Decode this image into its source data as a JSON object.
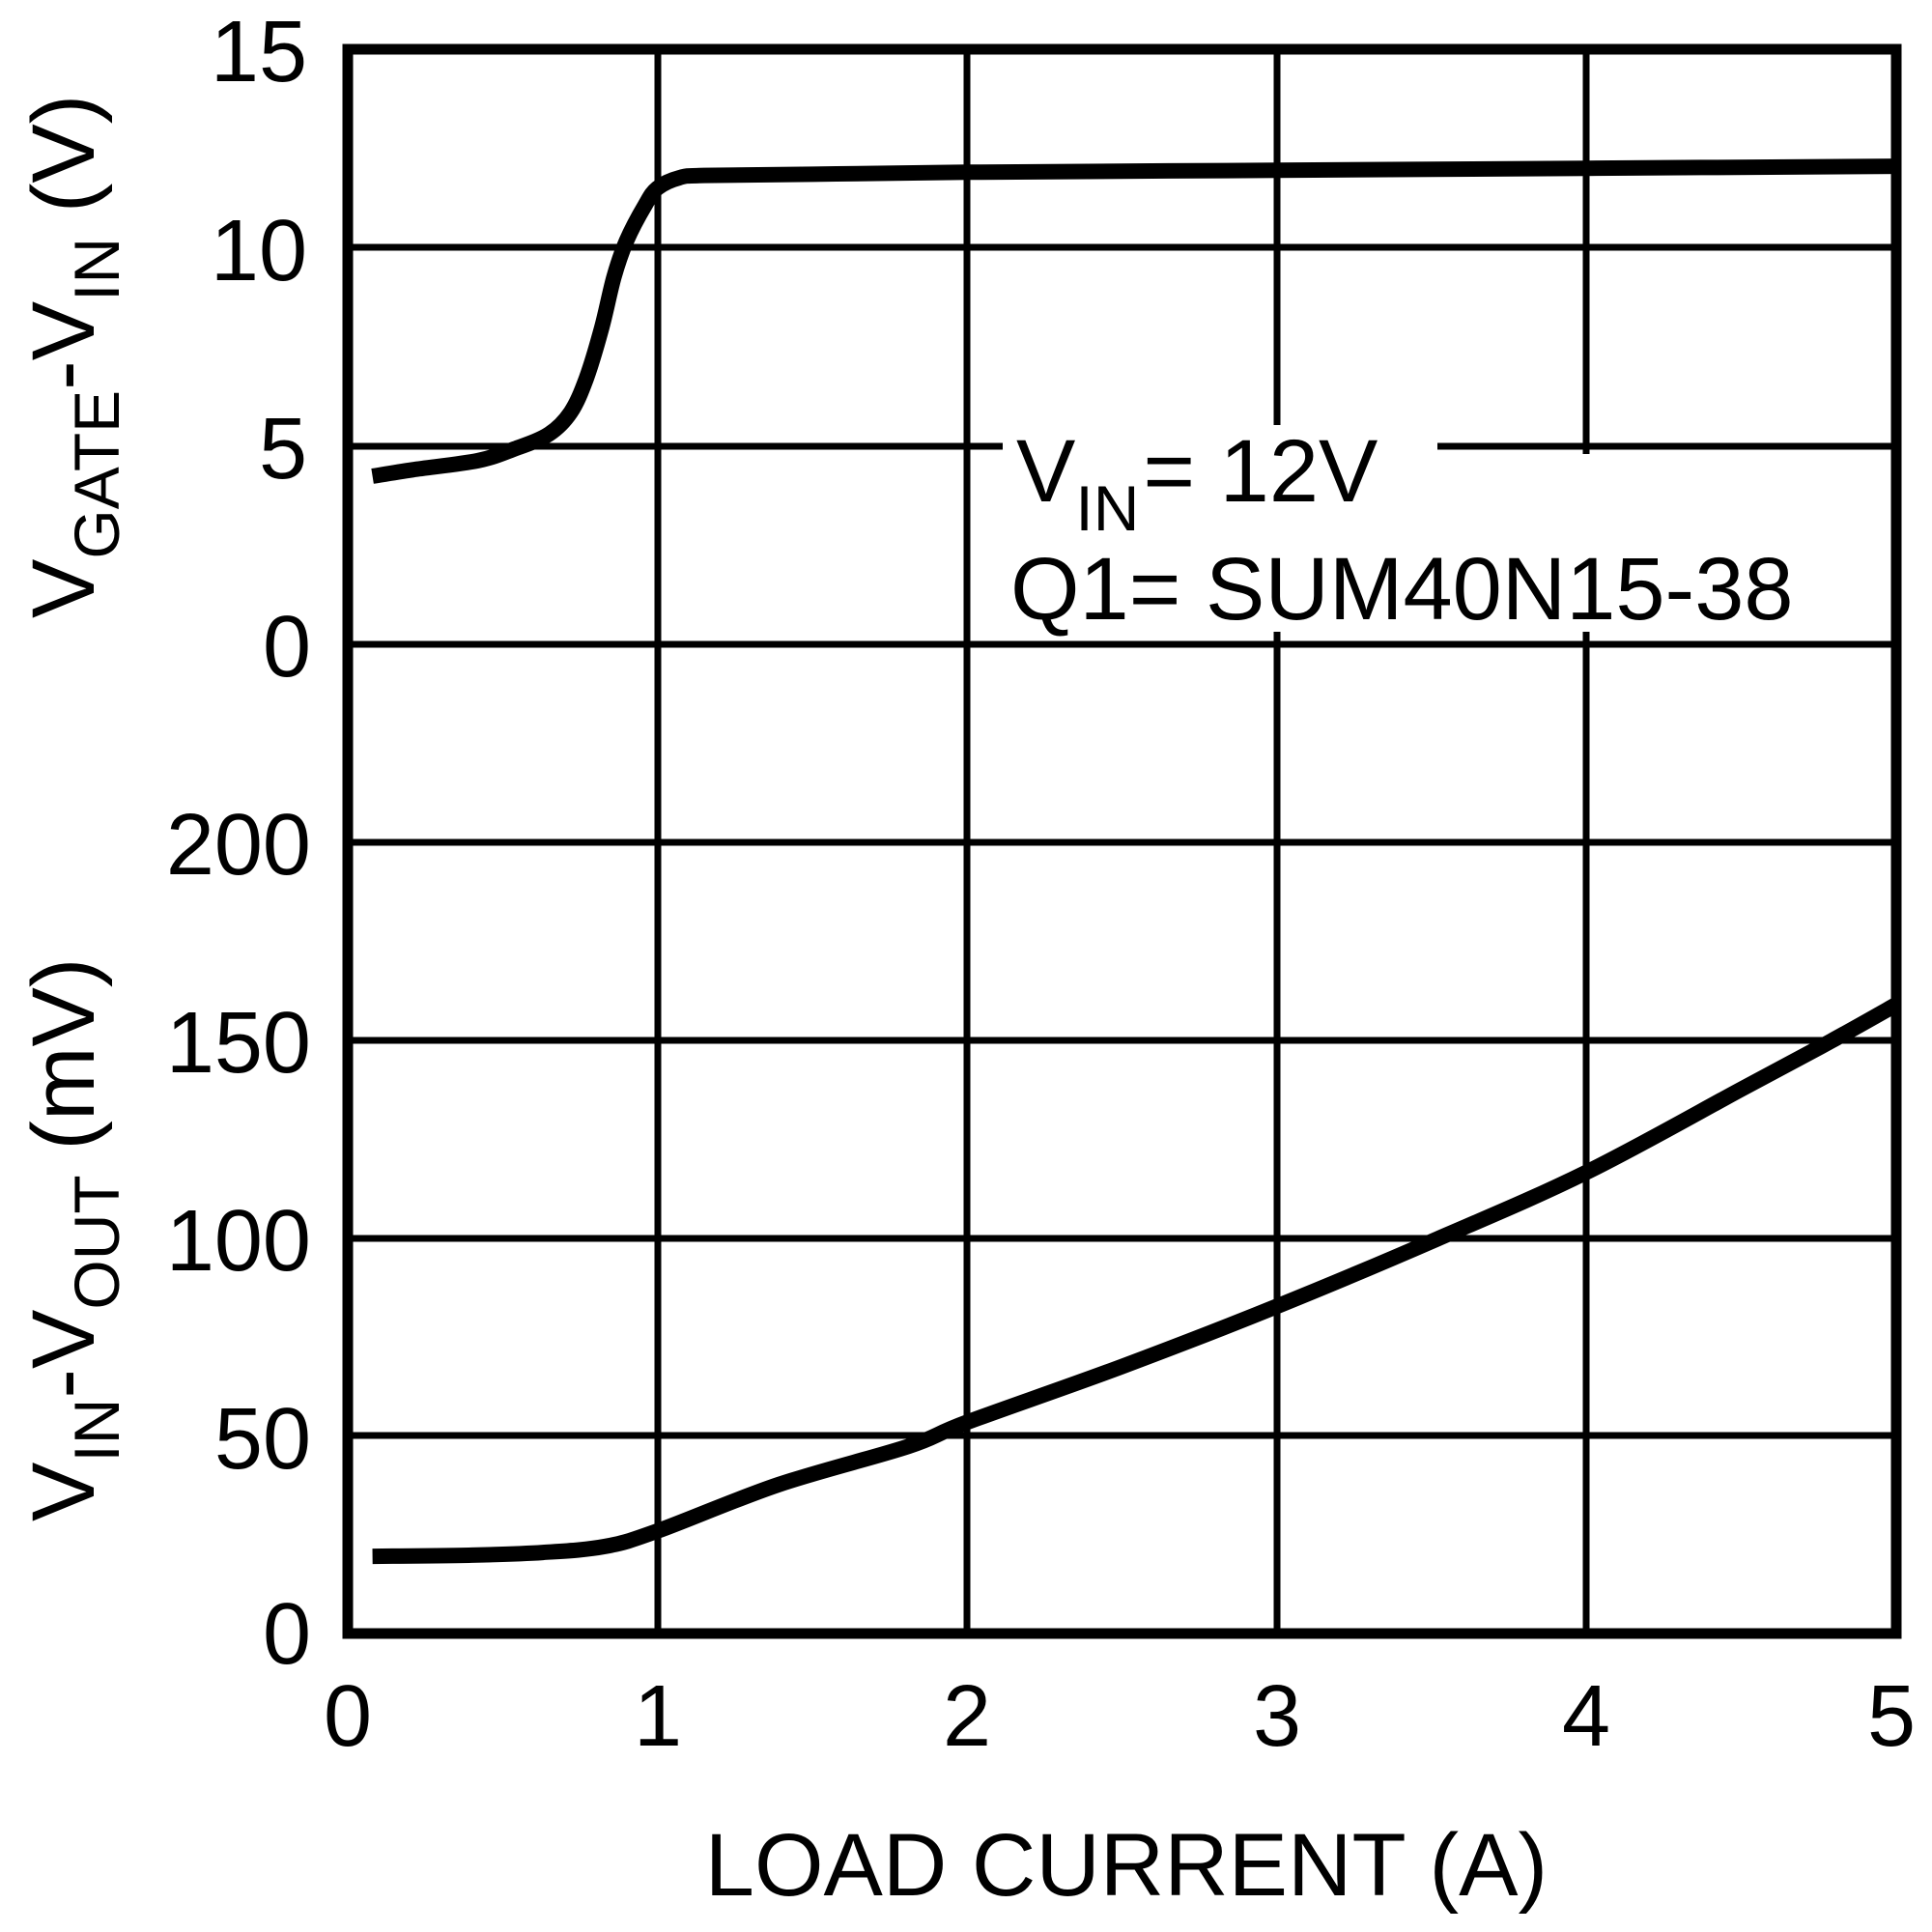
{
  "chart_data": [
    {
      "type": "line",
      "panel": "upper",
      "ylabel": {
        "main": "V",
        "sub1": "GATE",
        "mid": "-V",
        "sub2": "IN",
        "unit": " (V)"
      },
      "ylabel_text": "VGATE-VIN (V)",
      "ylim": [
        0,
        15
      ],
      "yticks": [
        "0",
        "5",
        "10",
        "15"
      ],
      "xlim": [
        0,
        5
      ],
      "grid": true,
      "series": [
        {
          "name": "VGATE-VIN",
          "x": [
            0.08,
            0.21,
            0.42,
            0.54,
            0.65,
            0.72,
            0.77,
            0.82,
            0.86,
            0.9,
            0.96,
            1.0,
            1.07,
            1.15,
            1.5,
            2.0,
            3.0,
            4.0,
            5.0
          ],
          "y": [
            4.24,
            4.4,
            4.63,
            4.93,
            5.3,
            5.85,
            6.7,
            7.98,
            9.27,
            10.17,
            11.07,
            11.5,
            11.76,
            11.82,
            11.85,
            11.9,
            11.95,
            12.0,
            12.05
          ]
        }
      ]
    },
    {
      "type": "line",
      "panel": "lower",
      "ylabel": {
        "main": "V",
        "sub1": "IN",
        "mid": "-V",
        "sub2": "OUT",
        "unit": " (mV)"
      },
      "ylabel_text": "VIN-VOUT (mV)",
      "ylim": [
        0,
        200
      ],
      "yticks": [
        "0",
        "50",
        "100",
        "150",
        "200"
      ],
      "xlim": [
        0,
        5
      ],
      "xlabel": "LOAD CURRENT (A)",
      "xticks": [
        "0",
        "1",
        "2",
        "3",
        "4",
        "5"
      ],
      "grid": true,
      "series": [
        {
          "name": "VIN-VOUT",
          "x": [
            0.08,
            0.4,
            0.63,
            0.83,
            1.0,
            1.39,
            1.81,
            2.0,
            2.5,
            3.0,
            3.52,
            4.0,
            4.5,
            4.79,
            5.0
          ],
          "y": [
            19.5,
            19.8,
            20.5,
            22.0,
            25.9,
            37.6,
            47.3,
            53.4,
            67.5,
            82.7,
            99.8,
            116.6,
            137.6,
            149.8,
            159.0
          ]
        }
      ]
    }
  ],
  "annotation": {
    "line1": {
      "main": "V",
      "sub": "IN",
      "rest": "= 12V"
    },
    "line2": "Q1= SUM40N15-38"
  },
  "x_axis": {
    "label": "LOAD CURRENT (A)",
    "ticks": [
      "0",
      "1",
      "2",
      "3",
      "4",
      "5"
    ]
  },
  "upper_axis": {
    "ticks": [
      "15",
      "10",
      "5",
      "0"
    ]
  },
  "lower_axis": {
    "ticks": [
      "200",
      "150",
      "100",
      "50",
      "0"
    ]
  }
}
